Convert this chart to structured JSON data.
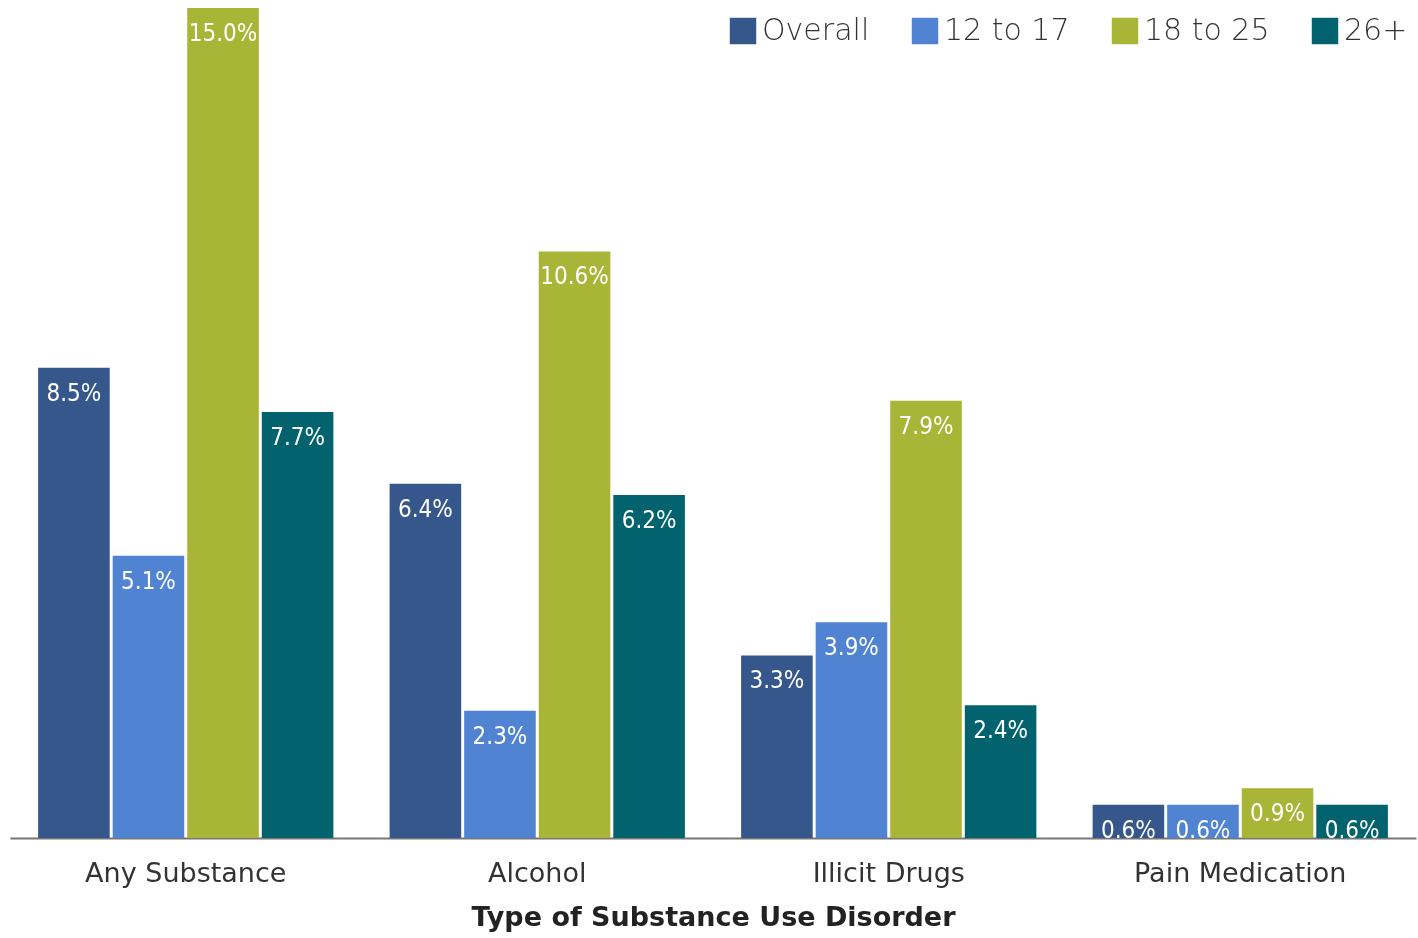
{
  "chart_data": {
    "type": "bar",
    "xlabel": "Type of Substance Use Disorder",
    "categories": [
      "Any Substance",
      "Alcohol",
      "Illicit Drugs",
      "Pain Medication"
    ],
    "legend": "top right",
    "grid": false,
    "series": [
      {
        "name": "Overall",
        "color": "#36578b",
        "values": [
          8.5,
          6.4,
          3.3,
          0.6
        ],
        "value_labels": [
          "8.5%",
          "6.4%",
          "3.3%",
          "0.6%"
        ]
      },
      {
        "name": "12 to 17",
        "color": "#5183d3",
        "values": [
          5.1,
          2.3,
          3.9,
          0.6
        ],
        "value_labels": [
          "5.1%",
          "2.3%",
          "3.9%",
          "0.6%"
        ]
      },
      {
        "name": "18 to 25",
        "color": "#a8b536",
        "values": [
          15.0,
          10.6,
          7.9,
          0.9
        ],
        "value_labels": [
          "15.0%",
          "10.6%",
          "7.9%",
          "0.9%"
        ]
      },
      {
        "name": "26+",
        "color": "#02626e",
        "values": [
          7.7,
          6.2,
          2.4,
          0.6
        ],
        "value_labels": [
          "7.7%",
          "6.2%",
          "2.4%",
          "0.6%"
        ]
      }
    ]
  }
}
